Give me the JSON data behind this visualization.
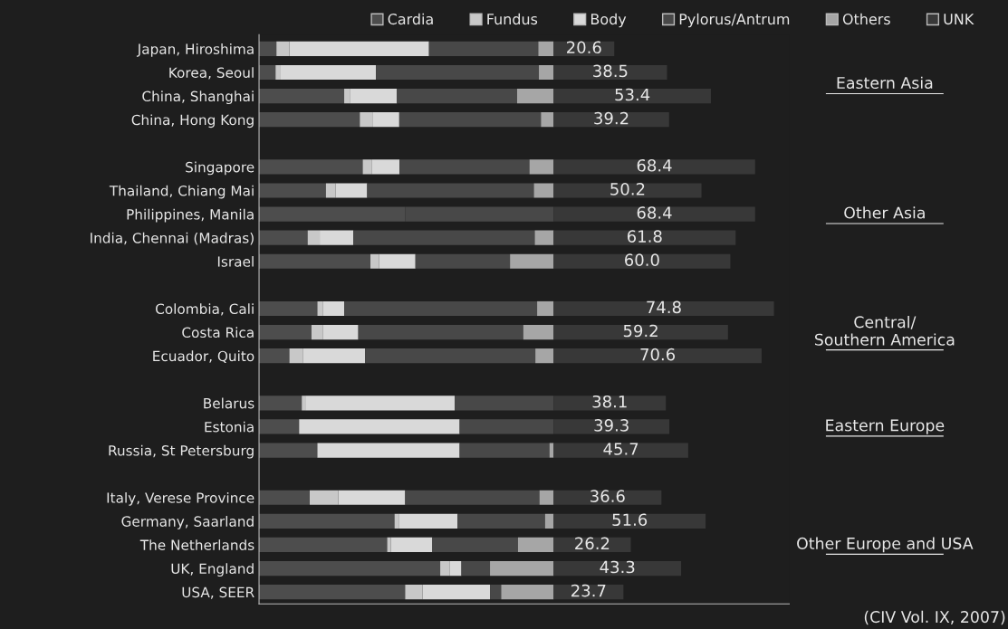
{
  "chart_data": {
    "type": "bar",
    "orientation": "horizontal",
    "stacked": true,
    "categories": [
      "Japan, Hiroshima",
      "Korea, Seoul",
      "China, Shanghai",
      "China, Hong Kong",
      null,
      "Singapore",
      "Thailand, Chiang Mai",
      "Philippines, Manila",
      "India, Chennai (Madras)",
      "Israel",
      null,
      "Colombia, Cali",
      "Costa Rica",
      "Ecuador, Quito",
      null,
      "Belarus",
      "Estonia",
      "Russia, St Petersburg",
      null,
      "Italy, Verese Province",
      "Germany, Saarland",
      "The Netherlands",
      "UK, England",
      "USA, SEER"
    ],
    "xlim": [
      0,
      180
    ],
    "tick_labels": "y",
    "legend": "top",
    "series": [
      {
        "name": "Cardia",
        "color": "#4d4d4d",
        "values": [
          5.9,
          5.6,
          28.9,
          34.2,
          null,
          35.2,
          22.7,
          49.6,
          16.5,
          37.8,
          null,
          19.8,
          17.8,
          10.3,
          null,
          14.5,
          13.6,
          19.8,
          null,
          17.2,
          46.0,
          43.5,
          61.5,
          49.6
        ]
      },
      {
        "name": "Fundus",
        "color": "#c8c8c8",
        "values": [
          4.4,
          1.5,
          1.9,
          4.5,
          null,
          3.0,
          3.3,
          0,
          4.1,
          3.0,
          null,
          1.8,
          3.8,
          4.7,
          null,
          1.2,
          0,
          0,
          null,
          9.7,
          1.4,
          1.2,
          3.3,
          5.9
        ]
      },
      {
        "name": "Body",
        "color": "#d9d9d9",
        "values": [
          47.4,
          32.6,
          16.0,
          8.9,
          null,
          9.5,
          10.7,
          0,
          11.4,
          12.3,
          null,
          7.3,
          12.1,
          21.0,
          null,
          50.7,
          54.5,
          48.3,
          null,
          22.7,
          20.0,
          14.1,
          3.9,
          22.9
        ]
      },
      {
        "name": "Pylorus/Antrum",
        "color": "#484848",
        "values": [
          37.1,
          55.3,
          40.8,
          48.1,
          null,
          44.1,
          56.6,
          50.4,
          61.6,
          32.1,
          null,
          65.5,
          56.0,
          57.8,
          null,
          33.6,
          31.9,
          30.5,
          null,
          45.6,
          29.7,
          29.1,
          9.7,
          3.8
        ]
      },
      {
        "name": "Others",
        "color": "#a6a6a6",
        "values": [
          5.2,
          5.0,
          12.4,
          4.3,
          null,
          8.2,
          6.7,
          0,
          6.4,
          14.8,
          null,
          5.6,
          10.3,
          6.2,
          null,
          0,
          0,
          1.4,
          null,
          4.8,
          2.9,
          12.1,
          21.6,
          17.8
        ]
      },
      {
        "name": "UNK",
        "color": "#383838",
        "values": [
          20.6,
          38.5,
          53.4,
          39.2,
          null,
          68.4,
          50.2,
          68.4,
          61.8,
          60.0,
          null,
          74.8,
          59.2,
          70.6,
          null,
          38.1,
          39.3,
          45.7,
          null,
          36.6,
          51.6,
          26.2,
          43.3,
          23.7
        ],
        "value_labels": [
          "20.6",
          "38.5",
          "53.4",
          "39.2",
          null,
          "68.4",
          "50.2",
          "68.4",
          "61.8",
          "60.0",
          null,
          "74.8",
          "59.2",
          "70.6",
          null,
          "38.1",
          "39.3",
          "45.7",
          null,
          "36.6",
          "51.6",
          "26.2",
          "43.3",
          "23.7"
        ]
      }
    ],
    "annotations": [
      "Eastern Asia",
      "Other Asia",
      "Central/\nSouthern America",
      "Eastern Europe",
      "Other Europe and USA",
      "(CIV Vol. IX, 2007)"
    ]
  }
}
